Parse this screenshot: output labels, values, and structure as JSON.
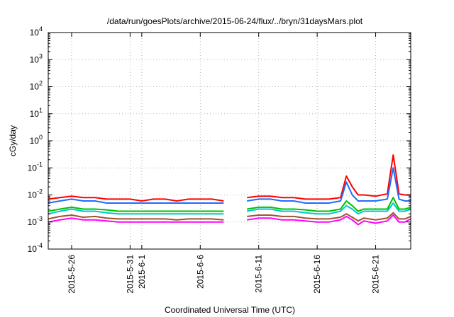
{
  "chart_data": {
    "type": "line",
    "title": "/data/run/goesPlots/archive/2015-06-24/flux/../bryn/31daysMars.plot",
    "xlabel": "Coordinated Universal Time (UTC)",
    "ylabel": "cGy/day",
    "yscale": "log",
    "ylim": [
      0.0001,
      10000
    ],
    "y_ticks": [
      {
        "value": 0.0001,
        "base": "10",
        "exp": "-4"
      },
      {
        "value": 0.001,
        "base": "10",
        "exp": "-3"
      },
      {
        "value": 0.01,
        "base": "10",
        "exp": "-2"
      },
      {
        "value": 0.1,
        "base": "10",
        "exp": "-1"
      },
      {
        "value": 1,
        "base": "10",
        "exp": "0"
      },
      {
        "value": 10,
        "base": "10",
        "exp": "1"
      },
      {
        "value": 100,
        "base": "10",
        "exp": "2"
      },
      {
        "value": 1000,
        "base": "10",
        "exp": "3"
      },
      {
        "value": 10000,
        "base": "10",
        "exp": "4"
      }
    ],
    "xlim": [
      "2015-05-24",
      "2015-06-24"
    ],
    "x_ticks": [
      "2015-5-26",
      "2015-5-31",
      "2015-6-1",
      "2015-6-6",
      "2015-6-11",
      "2015-6-16",
      "2015-6-21"
    ],
    "grid": true,
    "legend": "none",
    "series": [
      {
        "color": "#ff0000",
        "x": [
          "2015-05-24",
          "2015-05-25",
          "2015-05-26",
          "2015-05-27",
          "2015-05-28",
          "2015-05-29",
          "2015-05-30",
          "2015-05-31",
          "2015-06-01",
          "2015-06-02",
          "2015-06-03",
          "2015-06-04",
          "2015-06-05",
          "2015-06-06",
          "2015-06-07",
          "2015-06-08",
          "2015-06-09",
          "2015-06-10",
          "2015-06-11",
          "2015-06-12",
          "2015-06-13",
          "2015-06-14",
          "2015-06-15",
          "2015-06-16",
          "2015-06-17",
          "2015-06-18",
          "2015-06-18T12",
          "2015-06-19",
          "2015-06-19T12",
          "2015-06-20",
          "2015-06-21",
          "2015-06-22",
          "2015-06-22T12",
          "2015-06-23",
          "2015-06-23T12",
          "2015-06-24"
        ],
        "y": [
          0.007,
          0.008,
          0.009,
          0.008,
          0.008,
          0.007,
          0.007,
          0.007,
          0.006,
          0.007,
          0.007,
          0.006,
          0.007,
          0.007,
          0.007,
          0.006,
          null,
          0.008,
          0.009,
          0.009,
          0.008,
          0.008,
          0.007,
          0.007,
          0.007,
          0.008,
          0.05,
          0.02,
          0.01,
          0.01,
          0.009,
          0.011,
          0.3,
          0.011,
          0.01,
          0.01
        ]
      },
      {
        "color": "#1e6cff",
        "x": [
          "2015-05-24",
          "2015-05-25",
          "2015-05-26",
          "2015-05-27",
          "2015-05-28",
          "2015-05-29",
          "2015-05-30",
          "2015-05-31",
          "2015-06-01",
          "2015-06-02",
          "2015-06-03",
          "2015-06-04",
          "2015-06-05",
          "2015-06-06",
          "2015-06-07",
          "2015-06-08",
          "2015-06-09",
          "2015-06-10",
          "2015-06-11",
          "2015-06-12",
          "2015-06-13",
          "2015-06-14",
          "2015-06-15",
          "2015-06-16",
          "2015-06-17",
          "2015-06-18",
          "2015-06-18T12",
          "2015-06-19",
          "2015-06-19T12",
          "2015-06-20",
          "2015-06-21",
          "2015-06-22",
          "2015-06-22T12",
          "2015-06-23",
          "2015-06-23T12",
          "2015-06-24"
        ],
        "y": [
          0.005,
          0.006,
          0.007,
          0.006,
          0.006,
          0.005,
          0.005,
          0.005,
          0.005,
          0.005,
          0.005,
          0.005,
          0.005,
          0.005,
          0.005,
          0.005,
          null,
          0.006,
          0.007,
          0.007,
          0.006,
          0.006,
          0.005,
          0.005,
          0.005,
          0.006,
          0.03,
          0.01,
          0.006,
          0.006,
          0.006,
          0.007,
          0.1,
          0.007,
          0.006,
          0.006
        ]
      },
      {
        "color": "#00c000",
        "x": [
          "2015-05-24",
          "2015-05-25",
          "2015-05-26",
          "2015-05-27",
          "2015-05-28",
          "2015-05-29",
          "2015-05-30",
          "2015-05-31",
          "2015-06-01",
          "2015-06-02",
          "2015-06-03",
          "2015-06-04",
          "2015-06-05",
          "2015-06-06",
          "2015-06-07",
          "2015-06-08",
          "2015-06-09",
          "2015-06-10",
          "2015-06-11",
          "2015-06-12",
          "2015-06-13",
          "2015-06-14",
          "2015-06-15",
          "2015-06-16",
          "2015-06-17",
          "2015-06-18",
          "2015-06-18T12",
          "2015-06-19",
          "2015-06-19T12",
          "2015-06-20",
          "2015-06-21",
          "2015-06-22",
          "2015-06-22T12",
          "2015-06-23",
          "2015-06-23T12",
          "2015-06-24"
        ],
        "y": [
          0.0025,
          0.003,
          0.0035,
          0.003,
          0.003,
          0.0028,
          0.0025,
          0.0025,
          0.0025,
          0.0025,
          0.0025,
          0.0025,
          0.0025,
          0.0025,
          0.0025,
          0.0025,
          null,
          0.003,
          0.0035,
          0.0035,
          0.003,
          0.003,
          0.0028,
          0.0025,
          0.0025,
          0.003,
          0.006,
          0.004,
          0.0025,
          0.003,
          0.003,
          0.003,
          0.008,
          0.003,
          0.003,
          0.0035
        ]
      },
      {
        "color": "#00c8c8",
        "x": [
          "2015-05-24",
          "2015-05-25",
          "2015-05-26",
          "2015-05-27",
          "2015-05-28",
          "2015-05-29",
          "2015-05-30",
          "2015-05-31",
          "2015-06-01",
          "2015-06-02",
          "2015-06-03",
          "2015-06-04",
          "2015-06-05",
          "2015-06-06",
          "2015-06-07",
          "2015-06-08",
          "2015-06-09",
          "2015-06-10",
          "2015-06-11",
          "2015-06-12",
          "2015-06-13",
          "2015-06-14",
          "2015-06-15",
          "2015-06-16",
          "2015-06-17",
          "2015-06-18",
          "2015-06-18T12",
          "2015-06-19",
          "2015-06-19T12",
          "2015-06-20",
          "2015-06-21",
          "2015-06-22",
          "2015-06-22T12",
          "2015-06-23",
          "2015-06-23T12",
          "2015-06-24"
        ],
        "y": [
          0.002,
          0.0025,
          0.003,
          0.0025,
          0.0025,
          0.0022,
          0.002,
          0.002,
          0.002,
          0.002,
          0.002,
          0.002,
          0.002,
          0.002,
          0.002,
          0.002,
          null,
          0.0025,
          0.003,
          0.003,
          0.0025,
          0.0025,
          0.0022,
          0.002,
          0.002,
          0.0025,
          0.004,
          0.003,
          0.002,
          0.0025,
          0.0025,
          0.0025,
          0.005,
          0.0025,
          0.0025,
          0.003
        ]
      },
      {
        "color": "#a0522d",
        "x": [
          "2015-05-24",
          "2015-05-25",
          "2015-05-26",
          "2015-05-27",
          "2015-05-28",
          "2015-05-29",
          "2015-05-30",
          "2015-05-31",
          "2015-06-01",
          "2015-06-02",
          "2015-06-03",
          "2015-06-04",
          "2015-06-05",
          "2015-06-06",
          "2015-06-07",
          "2015-06-08",
          "2015-06-09",
          "2015-06-10",
          "2015-06-11",
          "2015-06-12",
          "2015-06-13",
          "2015-06-14",
          "2015-06-15",
          "2015-06-16",
          "2015-06-17",
          "2015-06-18",
          "2015-06-18T12",
          "2015-06-19",
          "2015-06-19T12",
          "2015-06-20",
          "2015-06-21",
          "2015-06-22",
          "2015-06-22T12",
          "2015-06-23",
          "2015-06-23T12",
          "2015-06-24"
        ],
        "y": [
          0.0013,
          0.0016,
          0.0018,
          0.0015,
          0.0016,
          0.0014,
          0.0013,
          0.0013,
          0.0013,
          0.0013,
          0.0013,
          0.0012,
          0.0013,
          0.0013,
          0.0013,
          0.0012,
          null,
          0.0016,
          0.0018,
          0.0018,
          0.0016,
          0.0016,
          0.0014,
          0.0013,
          0.0013,
          0.0015,
          0.002,
          0.0015,
          0.0011,
          0.0014,
          0.0012,
          0.0014,
          0.0022,
          0.0013,
          0.0013,
          0.0016
        ]
      },
      {
        "color": "#ff00ff",
        "x": [
          "2015-05-24",
          "2015-05-25",
          "2015-05-26",
          "2015-05-27",
          "2015-05-28",
          "2015-05-29",
          "2015-05-30",
          "2015-05-31",
          "2015-06-01",
          "2015-06-02",
          "2015-06-03",
          "2015-06-04",
          "2015-06-05",
          "2015-06-06",
          "2015-06-07",
          "2015-06-08",
          "2015-06-09",
          "2015-06-10",
          "2015-06-11",
          "2015-06-12",
          "2015-06-13",
          "2015-06-14",
          "2015-06-15",
          "2015-06-16",
          "2015-06-17",
          "2015-06-18",
          "2015-06-18T12",
          "2015-06-19",
          "2015-06-19T12",
          "2015-06-20",
          "2015-06-21",
          "2015-06-22",
          "2015-06-22T12",
          "2015-06-23",
          "2015-06-23T12",
          "2015-06-24"
        ],
        "y": [
          0.001,
          0.0012,
          0.0014,
          0.0012,
          0.0012,
          0.0011,
          0.001,
          0.001,
          0.001,
          0.001,
          0.001,
          0.001,
          0.001,
          0.001,
          0.001,
          0.001,
          null,
          0.0012,
          0.0014,
          0.0014,
          0.0012,
          0.0012,
          0.0011,
          0.001,
          0.001,
          0.0012,
          0.0016,
          0.0012,
          0.0008,
          0.0011,
          0.0009,
          0.0011,
          0.0018,
          0.001,
          0.001,
          0.0013
        ]
      }
    ]
  }
}
